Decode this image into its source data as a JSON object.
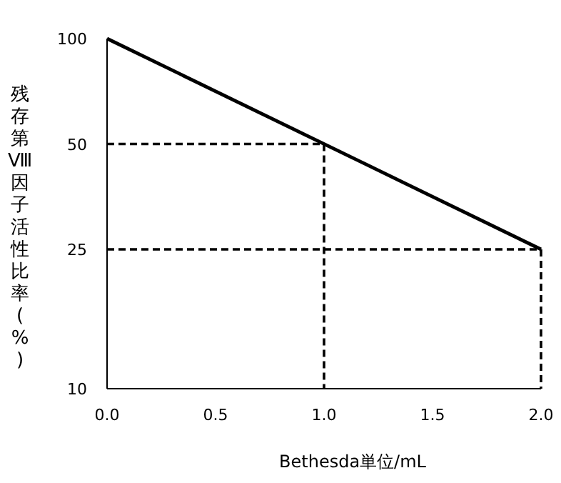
{
  "chart_data": {
    "type": "line",
    "xlabel": "Bethesda単位/mL",
    "ylabel": "残存第Ⅷ因子活性比率(%)",
    "log": "y",
    "xlim": [
      0,
      2
    ],
    "ylim": [
      10,
      100
    ],
    "xticks": [
      {
        "value": 0,
        "label": "0.0"
      },
      0.5,
      {
        "value": 1,
        "label": "1.0"
      },
      1.5,
      {
        "value": 2,
        "label": "2.0"
      }
    ],
    "yticks": [
      10,
      25,
      50,
      100
    ],
    "series": [
      {
        "type": "line",
        "color": "#000000",
        "line_style": "solid",
        "x": [
          0,
          2
        ],
        "values": [
          100,
          25
        ]
      },
      {
        "type": "line",
        "color": "#000000",
        "line_style": "dashed",
        "x": [
          0,
          1,
          1
        ],
        "values": [
          50,
          50,
          10
        ]
      },
      {
        "type": "line",
        "color": "#000000",
        "line_style": "dashed",
        "x": [
          0,
          2,
          2
        ],
        "values": [
          25,
          25,
          10
        ]
      }
    ]
  }
}
